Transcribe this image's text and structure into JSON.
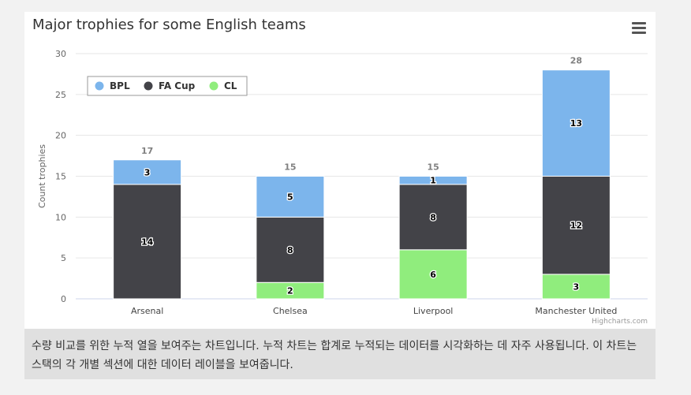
{
  "chart_data": {
    "type": "bar",
    "stacked": true,
    "title": "Major trophies for some English teams",
    "ylabel": "Count trophies",
    "xlabel": "",
    "categories": [
      "Arsenal",
      "Chelsea",
      "Liverpool",
      "Manchester United"
    ],
    "series": [
      {
        "name": "BPL",
        "color": "#7cb5ec",
        "values": [
          3,
          5,
          1,
          13
        ]
      },
      {
        "name": "FA Cup",
        "color": "#434348",
        "values": [
          14,
          8,
          8,
          12
        ]
      },
      {
        "name": "CL",
        "color": "#90ed7d",
        "values": [
          0,
          2,
          6,
          3
        ]
      }
    ],
    "totals": [
      17,
      15,
      15,
      28
    ],
    "ylim": [
      0,
      30
    ],
    "yticks": [
      0,
      5,
      10,
      15,
      20,
      25,
      30
    ],
    "grid": true,
    "legend_position": "top-left"
  },
  "credits": "Highcharts.com",
  "caption": "수량 비교를 위한 누적 열을 보여주는 차트입니다. 누적 차트는 합계로 누적되는 데이터를 시각화하는 데 자주 사용됩니다. 이 차트는 스택의 각 개별 섹션에 대한 데이터 레이블을 보여줍니다.",
  "menu_icon": "hamburger-menu-icon"
}
